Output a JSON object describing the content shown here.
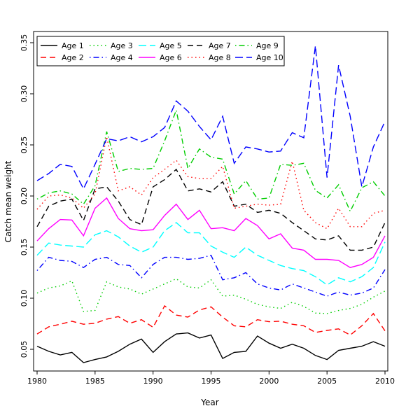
{
  "chart_data": {
    "type": "line",
    "title": "",
    "xlabel": "Year",
    "ylabel": "Catch mean weight",
    "xlim": [
      1980,
      2010
    ],
    "ylim": [
      0.05,
      0.35
    ],
    "x_ticks": [
      1980,
      1985,
      1990,
      1995,
      2000,
      2005,
      2010
    ],
    "y_ticks": [
      0.05,
      0.1,
      0.15,
      0.2,
      0.25,
      0.3,
      0.35
    ],
    "grid": false,
    "legend_position": "top-left",
    "legend_columns": 5,
    "years": [
      1980,
      1981,
      1982,
      1983,
      1984,
      1985,
      1986,
      1987,
      1988,
      1989,
      1990,
      1991,
      1992,
      1993,
      1994,
      1995,
      1996,
      1997,
      1998,
      1999,
      2000,
      2001,
      2002,
      2003,
      2004,
      2005,
      2006,
      2007,
      2008,
      2009,
      2010
    ],
    "series": [
      {
        "name": "Age 1",
        "color": "#000000",
        "line_style": "solid",
        "values": [
          0.053,
          0.048,
          0.0445,
          0.047,
          0.037,
          0.04,
          0.0425,
          0.048,
          0.055,
          0.06,
          0.047,
          0.0575,
          0.065,
          0.066,
          0.061,
          0.064,
          0.041,
          0.047,
          0.048,
          0.063,
          0.056,
          0.051,
          0.055,
          0.051,
          0.044,
          0.04,
          0.049,
          0.051,
          0.053,
          0.0575,
          0.053
        ]
      },
      {
        "name": "Age 2",
        "color": "#FF0000",
        "line_style": "dashed",
        "values": [
          0.065,
          0.072,
          0.0745,
          0.0775,
          0.0745,
          0.0755,
          0.0795,
          0.082,
          0.0755,
          0.079,
          0.0715,
          0.0925,
          0.0835,
          0.0815,
          0.0885,
          0.0915,
          0.0815,
          0.073,
          0.072,
          0.079,
          0.077,
          0.0775,
          0.0745,
          0.073,
          0.0665,
          0.0685,
          0.07,
          0.064,
          0.073,
          0.085,
          0.068
        ]
      },
      {
        "name": "Age 3",
        "color": "#00CD00",
        "line_style": "dotted",
        "values": [
          0.105,
          0.11,
          0.112,
          0.117,
          0.087,
          0.088,
          0.116,
          0.111,
          0.109,
          0.104,
          0.109,
          0.114,
          0.119,
          0.111,
          0.11,
          0.118,
          0.102,
          0.103,
          0.099,
          0.094,
          0.0915,
          0.09,
          0.096,
          0.092,
          0.0855,
          0.085,
          0.088,
          0.09,
          0.094,
          0.101,
          0.107
        ]
      },
      {
        "name": "Age 4",
        "color": "#0000FF",
        "line_style": "dotdash",
        "values": [
          0.127,
          0.14,
          0.137,
          0.136,
          0.13,
          0.138,
          0.14,
          0.133,
          0.132,
          0.12,
          0.133,
          0.14,
          0.14,
          0.138,
          0.139,
          0.142,
          0.118,
          0.12,
          0.125,
          0.114,
          0.11,
          0.108,
          0.114,
          0.11,
          0.106,
          0.102,
          0.106,
          0.103,
          0.105,
          0.11,
          0.128
        ]
      },
      {
        "name": "Age 5",
        "color": "#00FFFF",
        "line_style": "longdash",
        "values": [
          0.142,
          0.154,
          0.152,
          0.151,
          0.15,
          0.162,
          0.166,
          0.16,
          0.151,
          0.145,
          0.15,
          0.166,
          0.174,
          0.164,
          0.164,
          0.151,
          0.145,
          0.14,
          0.15,
          0.142,
          0.137,
          0.132,
          0.129,
          0.127,
          0.121,
          0.113,
          0.12,
          0.116,
          0.121,
          0.13,
          0.155
        ]
      },
      {
        "name": "Age 6",
        "color": "#FF00FF",
        "line_style": "solid",
        "values": [
          0.156,
          0.168,
          0.177,
          0.1765,
          0.161,
          0.188,
          0.198,
          0.178,
          0.168,
          0.166,
          0.167,
          0.181,
          0.192,
          0.177,
          0.186,
          0.168,
          0.169,
          0.166,
          0.178,
          0.171,
          0.158,
          0.163,
          0.149,
          0.147,
          0.138,
          0.138,
          0.137,
          0.13,
          0.133,
          0.14,
          0.161
        ]
      },
      {
        "name": "Age 7",
        "color": "#000000",
        "line_style": "dashed",
        "values": [
          0.17,
          0.19,
          0.195,
          0.197,
          0.176,
          0.207,
          0.209,
          0.195,
          0.177,
          0.172,
          0.209,
          0.216,
          0.226,
          0.205,
          0.207,
          0.204,
          0.214,
          0.19,
          0.192,
          0.184,
          0.186,
          0.183,
          0.174,
          0.166,
          0.158,
          0.157,
          0.161,
          0.147,
          0.147,
          0.15,
          0.174
        ]
      },
      {
        "name": "Age 8",
        "color": "#FF0000",
        "line_style": "dotted",
        "values": [
          0.187,
          0.2,
          0.201,
          0.198,
          0.188,
          0.202,
          0.258,
          0.205,
          0.209,
          0.201,
          0.218,
          0.226,
          0.235,
          0.219,
          0.217,
          0.217,
          0.229,
          0.188,
          0.19,
          0.192,
          0.191,
          0.192,
          0.234,
          0.186,
          0.174,
          0.168,
          0.188,
          0.17,
          0.17,
          0.183,
          0.186
        ]
      },
      {
        "name": "Age 9",
        "color": "#00CD00",
        "line_style": "dotdash",
        "values": [
          0.197,
          0.203,
          0.205,
          0.202,
          0.192,
          0.21,
          0.263,
          0.224,
          0.227,
          0.226,
          0.227,
          0.254,
          0.284,
          0.227,
          0.246,
          0.238,
          0.236,
          0.202,
          0.215,
          0.197,
          0.198,
          0.231,
          0.23,
          0.232,
          0.2055,
          0.198,
          0.211,
          0.185,
          0.208,
          0.214,
          0.2
        ]
      },
      {
        "name": "Age 10",
        "color": "#0000FF",
        "line_style": "longdash",
        "values": [
          0.215,
          0.222,
          0.231,
          0.229,
          0.207,
          0.231,
          0.256,
          0.254,
          0.258,
          0.253,
          0.258,
          0.267,
          0.293,
          0.283,
          0.268,
          0.255,
          0.278,
          0.232,
          0.248,
          0.246,
          0.243,
          0.244,
          0.262,
          0.257,
          0.347,
          0.218,
          0.328,
          0.278,
          0.209,
          0.248,
          0.273
        ]
      }
    ]
  }
}
